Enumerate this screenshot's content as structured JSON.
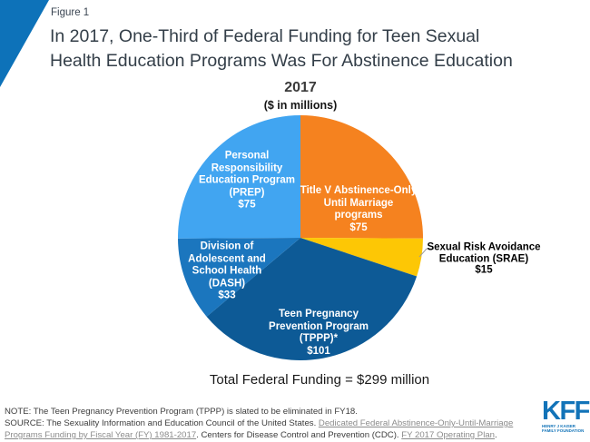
{
  "page": {
    "figure_label": "Figure 1",
    "title_line1": "In 2017, One-Third of Federal Funding for Teen Sexual",
    "title_line2": "Health Education Programs Was For Abstinence Education"
  },
  "chart_data": {
    "type": "pie",
    "title": "2017",
    "subtitle": "($ in millions)",
    "units": "$ in millions",
    "total": 299,
    "total_label": "Total Federal Funding = $299 million",
    "slices": [
      {
        "id": "title-v-abstinence",
        "name": "Title V Abstinence-Only Until Marriage programs",
        "label_lines": [
          "Title V Abstinence-Only",
          "Until Marriage",
          "programs",
          "$75"
        ],
        "value": 75,
        "color": "#F5821F",
        "label_color": "#FFFFFF"
      },
      {
        "id": "srae",
        "name": "Sexual Risk Avoidance Education (SRAE)",
        "label_lines": [
          "Sexual Risk Avoidance",
          "Education (SRAE)",
          "$15"
        ],
        "value": 15,
        "color": "#FDC705",
        "label_color": "#000000",
        "external": true
      },
      {
        "id": "tppp",
        "name": "Teen Pregnancy Prevention Program (TPPP)",
        "label_lines": [
          "Teen Pregnancy",
          "Prevention Program",
          "(TPPP)*",
          "$101"
        ],
        "value": 101,
        "color": "#0D5A96",
        "label_color": "#FFFFFF"
      },
      {
        "id": "dash",
        "name": "Division of Adolescent and School Health (DASH)",
        "label_lines": [
          "Division of",
          "Adolescent and",
          "School Health",
          "(DASH)",
          "$33"
        ],
        "value": 33,
        "color": "#1B76BE",
        "label_color": "#FFFFFF"
      },
      {
        "id": "prep",
        "name": "Personal Responsibility Education Program (PREP)",
        "label_lines": [
          "Personal",
          "Responsibility",
          "Education Program",
          "(PREP)",
          "$75"
        ],
        "value": 75,
        "color": "#41A5F1",
        "label_color": "#FFFFFF"
      }
    ],
    "legend_position": "inside-slices"
  },
  "footer": {
    "note": "NOTE: The Teen Pregnancy Prevention Program (TPPP) is slated to be eliminated in FY18.",
    "source_prefix": "SOURCE:  The Sexuality Information and Education Council of the United States. ",
    "source_link1": "Dedicated Federal Abstinence-Only-Until-Marriage Programs Funding by Fiscal Year (FY) 1981-2017",
    "source_mid": ". Centers for Disease Control and Prevention (CDC). ",
    "source_link2": "FY 2017 Operating Plan",
    "source_suffix": "."
  },
  "logo": {
    "text": "KFF",
    "tagline_line1": "HENRY J KAISER",
    "tagline_line2": "FAMILY FOUNDATION"
  },
  "colors": {
    "accent_triangle_blue": "#0D72B9",
    "logo_blue": "#1273B8",
    "title_text": "#333E48",
    "leader_line_gray": "#9B9B9B",
    "link_gray": "#8C8C8C"
  }
}
